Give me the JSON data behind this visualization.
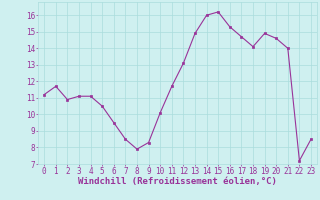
{
  "x": [
    0,
    1,
    2,
    3,
    4,
    5,
    6,
    7,
    8,
    9,
    10,
    11,
    12,
    13,
    14,
    15,
    16,
    17,
    18,
    19,
    20,
    21,
    22,
    23
  ],
  "y": [
    11.2,
    11.7,
    10.9,
    11.1,
    11.1,
    10.5,
    9.5,
    8.5,
    7.9,
    8.3,
    10.1,
    11.7,
    13.1,
    14.9,
    16.0,
    16.2,
    15.3,
    14.7,
    14.1,
    14.9,
    14.6,
    14.0,
    7.2,
    8.5
  ],
  "xlim": [
    -0.5,
    23.5
  ],
  "ylim": [
    7,
    16.8
  ],
  "yticks": [
    7,
    8,
    9,
    10,
    11,
    12,
    13,
    14,
    15,
    16
  ],
  "xticks": [
    0,
    1,
    2,
    3,
    4,
    5,
    6,
    7,
    8,
    9,
    10,
    11,
    12,
    13,
    14,
    15,
    16,
    17,
    18,
    19,
    20,
    21,
    22,
    23
  ],
  "xlabel": "Windchill (Refroidissement éolien,°C)",
  "line_color": "#993399",
  "marker_color": "#993399",
  "bg_color": "#cff0f0",
  "grid_color": "#aadddd",
  "tick_color": "#993399",
  "label_color": "#993399",
  "tick_fontsize": 5.5,
  "xlabel_fontsize": 6.5
}
